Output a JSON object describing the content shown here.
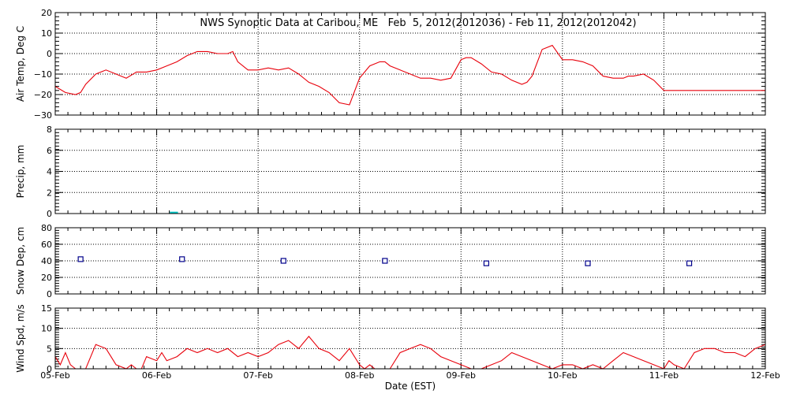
{
  "chart_data": {
    "type": "line",
    "title": "NWS Synoptic Data at Caribou, ME   Feb  5, 2012(2012036) - Feb 11, 2012(2012042)",
    "xlabel": "Date (EST)",
    "x_ticks": [
      "05-Feb",
      "06-Feb",
      "07-Feb",
      "08-Feb",
      "09-Feb",
      "10-Feb",
      "11-Feb",
      "12-Feb"
    ],
    "x_range_days": [
      0,
      7
    ],
    "grid": true,
    "panels": [
      {
        "id": "air-temp",
        "ylabel": "Air Temp, Deg C",
        "ylim": [
          -30,
          20
        ],
        "yticks": [
          20,
          10,
          0,
          -10,
          -20,
          -30
        ],
        "yticks_text": [
          "20",
          "10",
          "0",
          "−10",
          "−20",
          "−30"
        ],
        "series": [
          {
            "kind": "line",
            "color": "#e8000b",
            "x": [
              0,
              0.1,
              0.2,
              0.25,
              0.3,
              0.4,
              0.5,
              0.6,
              0.7,
              0.8,
              0.9,
              1.0,
              1.1,
              1.2,
              1.3,
              1.4,
              1.5,
              1.6,
              1.7,
              1.75,
              1.8,
              1.9,
              2.0,
              2.1,
              2.2,
              2.3,
              2.4,
              2.5,
              2.6,
              2.7,
              2.8,
              2.9,
              3.0,
              3.1,
              3.2,
              3.25,
              3.3,
              3.4,
              3.5,
              3.6,
              3.7,
              3.8,
              3.9,
              4.0,
              4.05,
              4.1,
              4.2,
              4.3,
              4.4,
              4.5,
              4.6,
              4.65,
              4.7,
              4.8,
              4.9,
              5.0,
              5.1,
              5.2,
              5.3,
              5.4,
              5.5,
              5.6,
              5.65,
              5.7,
              5.8,
              5.9,
              6.0,
              6.1,
              6.2,
              6.3,
              6.4,
              6.5,
              6.6,
              6.7,
              6.8,
              6.9,
              7.0
            ],
            "y": [
              -16,
              -19,
              -20,
              -19,
              -15,
              -10,
              -8,
              -10,
              -12,
              -9,
              -9,
              -8,
              -6,
              -4,
              -1,
              1,
              1,
              0,
              0,
              1,
              -4,
              -8,
              -8,
              -7,
              -8,
              -7,
              -10,
              -14,
              -16,
              -19,
              -24,
              -25,
              -12,
              -6,
              -4,
              -4,
              -6,
              -8,
              -10,
              -12,
              -12,
              -13,
              -12,
              -3,
              -2,
              -2,
              -5,
              -9,
              -10,
              -13,
              -15,
              -14,
              -11,
              2,
              4,
              -3,
              -3,
              -4,
              -6,
              -11,
              -12,
              -12,
              -11,
              -11,
              -10,
              -13,
              -18,
              -18,
              -18,
              -18,
              -18,
              -18,
              -18,
              -18,
              -18,
              -18,
              -18
            ]
          }
        ]
      },
      {
        "id": "precip",
        "ylabel": "Precip, mm",
        "ylim": [
          0,
          8
        ],
        "yticks": [
          8,
          6,
          4,
          2,
          0
        ],
        "yticks_text": [
          "8",
          "6",
          "4",
          "2",
          "0"
        ],
        "series": [
          {
            "kind": "bar",
            "color": "#00c8c8",
            "x_start": 1.13,
            "x_end": 1.21,
            "values": [
              0.1
            ]
          }
        ]
      },
      {
        "id": "snow-depth",
        "ylabel": "Snow Dep, cm",
        "ylim": [
          0,
          80
        ],
        "yticks": [
          80,
          60,
          40,
          20,
          0
        ],
        "yticks_text": [
          "80",
          "60",
          "40",
          "20",
          "0"
        ],
        "series": [
          {
            "kind": "scatter",
            "color": "#00008b",
            "x": [
              0.25,
              1.25,
              2.25,
              3.25,
              4.25,
              5.25,
              6.25
            ],
            "y": [
              42,
              42,
              40,
              40,
              37,
              37,
              37
            ]
          }
        ]
      },
      {
        "id": "wind-speed",
        "ylabel": "Wind Spd, m/s",
        "ylim": [
          0,
          15
        ],
        "yticks": [
          15,
          10,
          5,
          0
        ],
        "yticks_text": [
          "15",
          "10",
          "5",
          "0"
        ],
        "series": [
          {
            "kind": "line",
            "color": "#e8000b",
            "x": [
              0,
              0.05,
              0.1,
              0.15,
              0.2,
              0.3,
              0.4,
              0.5,
              0.55,
              0.6,
              0.7,
              0.75,
              0.8,
              0.85,
              0.9,
              1.0,
              1.05,
              1.1,
              1.2,
              1.3,
              1.4,
              1.5,
              1.6,
              1.7,
              1.8,
              1.9,
              2.0,
              2.1,
              2.2,
              2.3,
              2.4,
              2.5,
              2.6,
              2.7,
              2.8,
              2.9,
              3.0,
              3.05,
              3.1,
              3.15,
              3.2,
              3.3,
              3.4,
              3.5,
              3.6,
              3.7,
              3.8,
              3.9,
              4.0,
              4.1,
              4.2,
              4.3,
              4.4,
              4.5,
              4.6,
              4.7,
              4.8,
              4.9,
              5.0,
              5.1,
              5.2,
              5.3,
              5.4,
              5.5,
              5.6,
              5.7,
              5.8,
              5.9,
              6.0,
              6.05,
              6.1,
              6.2,
              6.3,
              6.4,
              6.5,
              6.6,
              6.7,
              6.8,
              6.9,
              7.0
            ],
            "y": [
              3,
              1,
              4,
              1,
              0,
              0,
              6,
              5,
              3,
              1,
              0,
              1,
              0,
              0,
              3,
              2,
              4,
              2,
              3,
              5,
              4,
              5,
              4,
              5,
              3,
              4,
              3,
              4,
              6,
              7,
              5,
              8,
              5,
              4,
              2,
              5,
              1,
              0,
              1,
              0,
              0,
              0,
              4,
              5,
              6,
              5,
              3,
              2,
              1,
              0,
              0,
              1,
              2,
              4,
              3,
              2,
              1,
              0,
              1,
              1,
              0,
              1,
              0,
              2,
              4,
              3,
              2,
              1,
              0,
              2,
              1,
              0,
              4,
              5,
              5,
              4,
              4,
              3,
              5,
              6
            ]
          }
        ]
      }
    ]
  }
}
